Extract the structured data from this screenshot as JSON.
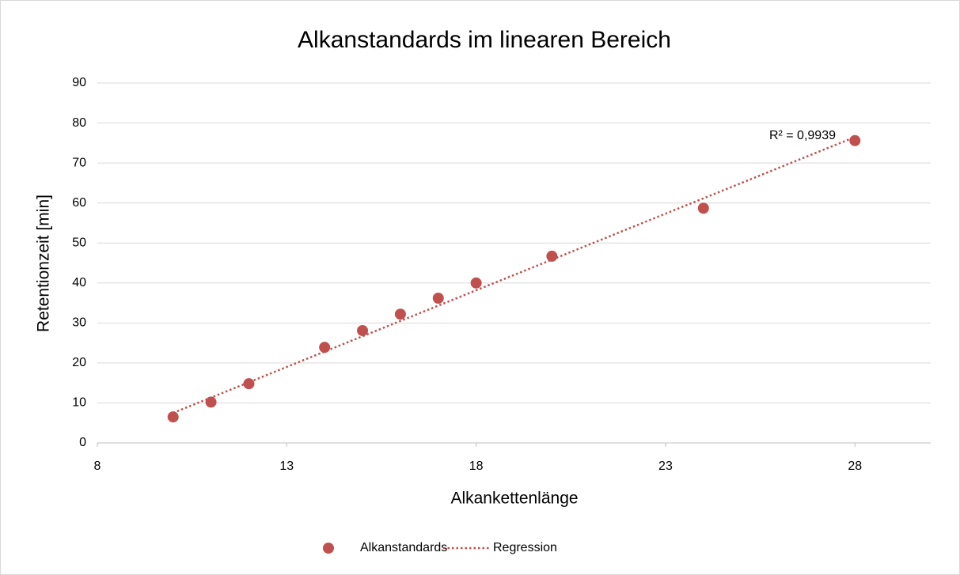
{
  "chart_data": {
    "type": "scatter",
    "title": "Alkanstandards im linearen Bereich",
    "x_label": "Alkankettenlänge",
    "y_label": "Retentionzeit [min]",
    "annotation": "R² = 0,9939",
    "series": [
      {
        "name": "Alkanstandards",
        "color": "#c0504d",
        "style": "marker",
        "x": [
          10,
          11,
          12,
          14,
          15,
          16,
          17,
          18,
          20,
          24,
          28
        ],
        "values": [
          6.5,
          10.2,
          14.8,
          23.9,
          28.1,
          32.2,
          36.2,
          40.0,
          46.7,
          58.7,
          75.6
        ]
      },
      {
        "name": "Regression",
        "color": "#c0504d",
        "style": "dotted",
        "x": [
          10,
          28
        ],
        "values": [
          7.5,
          76.5
        ]
      }
    ],
    "xlim": [
      8,
      30
    ],
    "xticks": [
      8,
      13,
      18,
      23,
      28
    ],
    "ylim": [
      0,
      90
    ],
    "yticks": [
      0,
      10,
      20,
      30,
      40,
      50,
      60,
      70,
      80,
      90
    ],
    "grid": true,
    "legend": "bottom"
  }
}
